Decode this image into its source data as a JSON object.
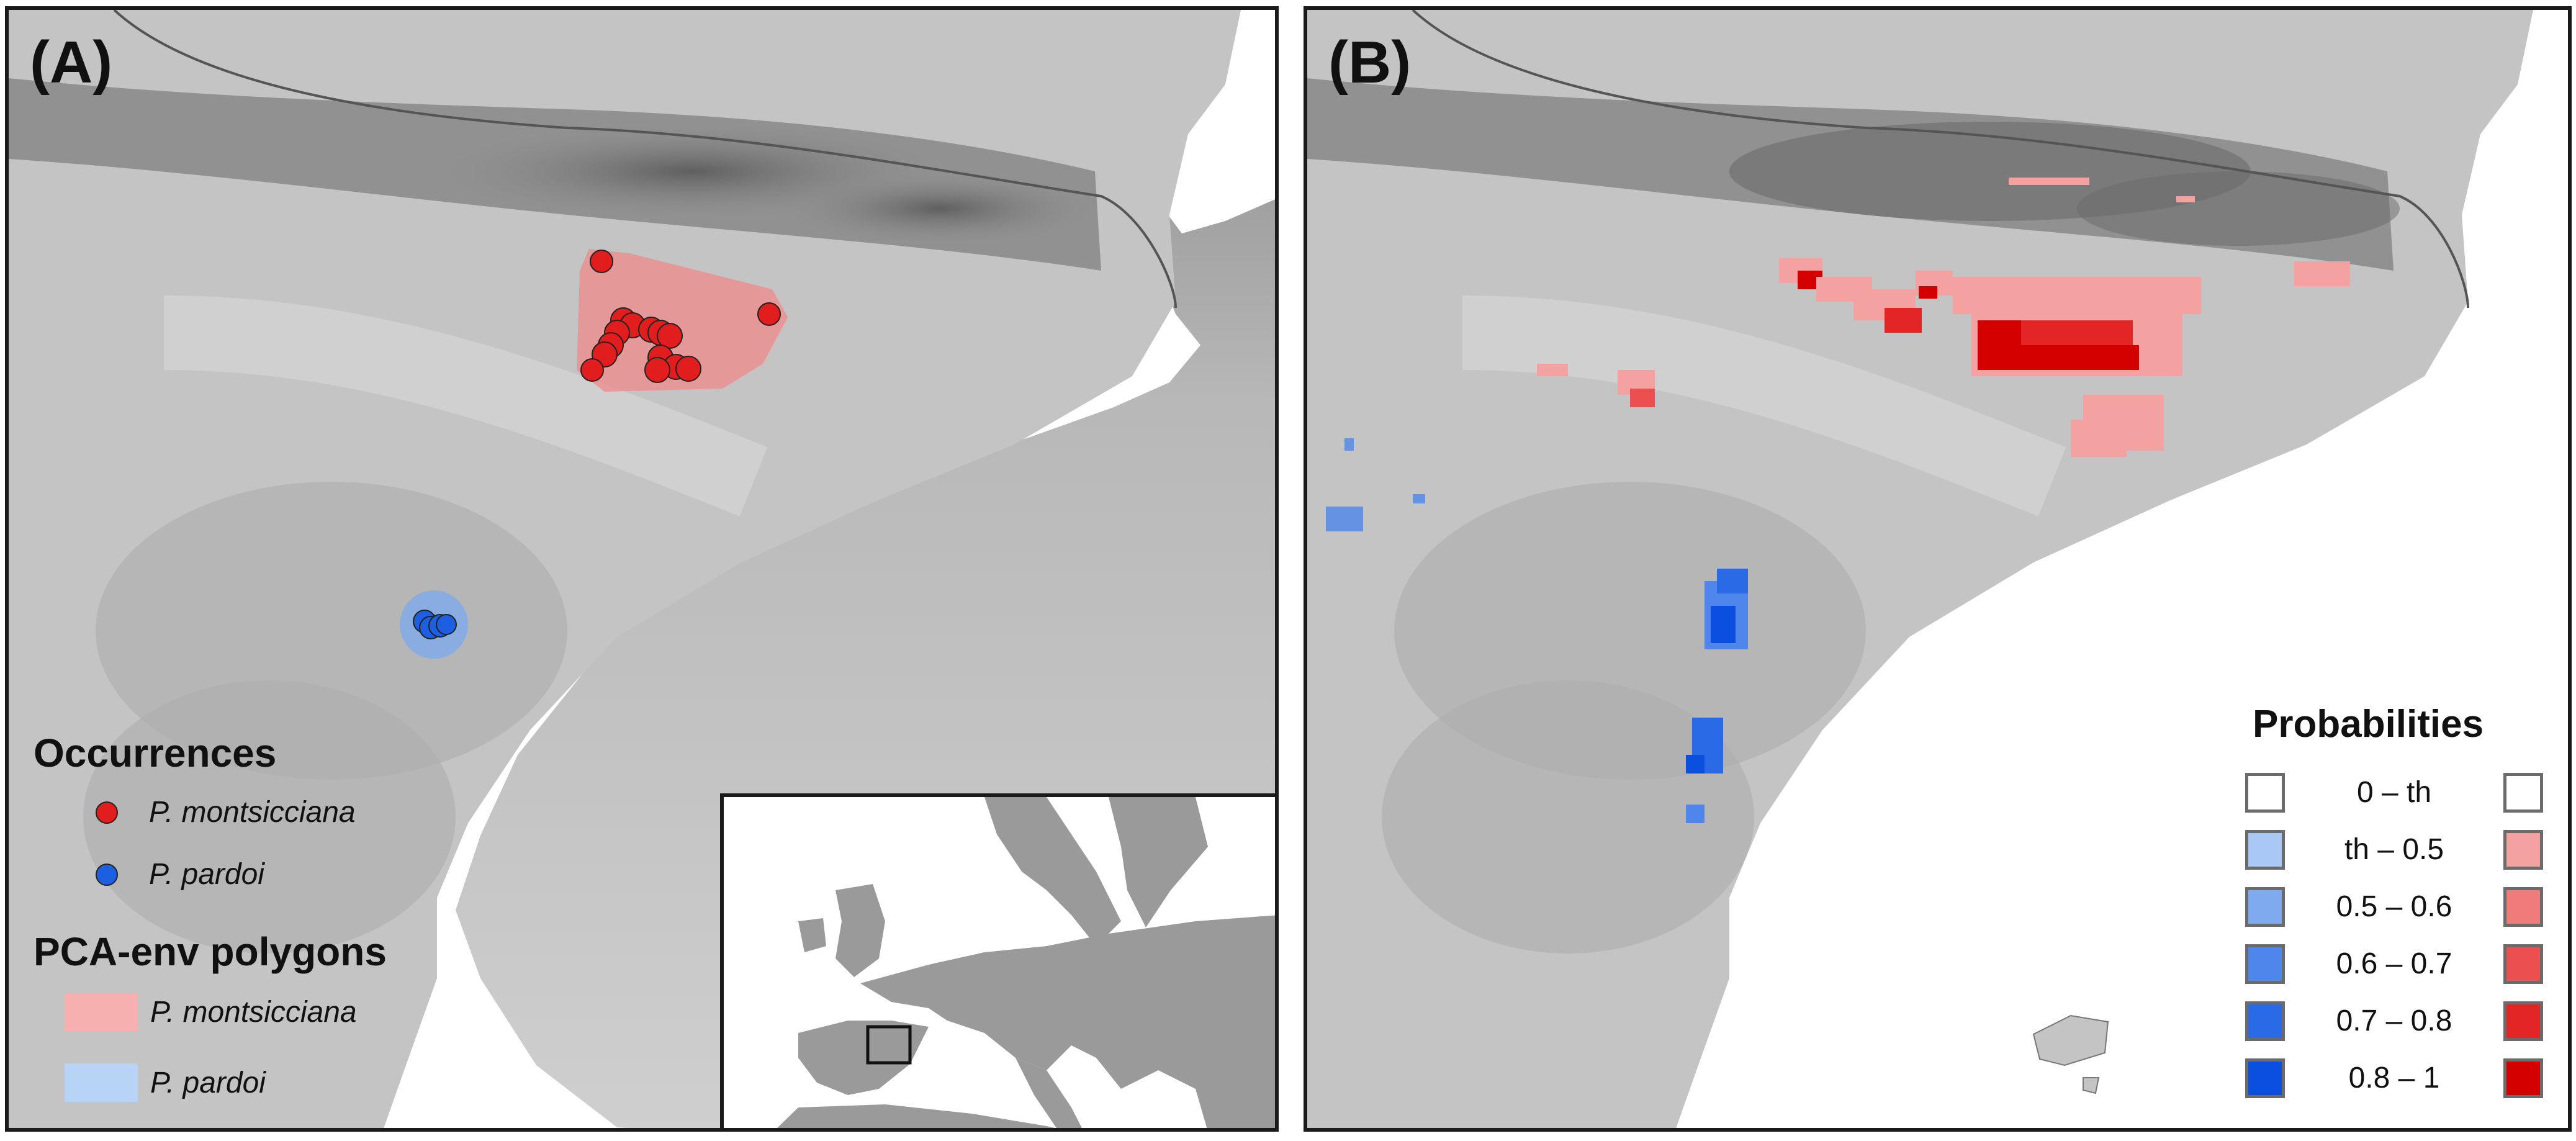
{
  "panelA": {
    "label": "(A)",
    "occurrences": {
      "title": "Occurrences",
      "items": [
        {
          "name": "P. montsicciana",
          "color": "#e11d1d"
        },
        {
          "name": "P. pardoi",
          "color": "#1d5fe1"
        }
      ]
    },
    "polygons": {
      "title": "PCA-env polygons",
      "items": [
        {
          "name": "P. montsicciana",
          "color": "#f7b0b0"
        },
        {
          "name": "P. pardoi",
          "color": "#b7d4f7"
        }
      ]
    }
  },
  "panelB": {
    "label": "(B)",
    "probabilities": {
      "title": "Probabilities",
      "rows": [
        {
          "range": "0 – th",
          "blue": "#ffffff",
          "red": "#ffffff"
        },
        {
          "range": "th – 0.5",
          "blue": "#a9c8f5",
          "red": "#f4a1a1"
        },
        {
          "range": "0.5 – 0.6",
          "blue": "#7faaf0",
          "red": "#ef7b7b"
        },
        {
          "range": "0.6 – 0.7",
          "blue": "#4f86ec",
          "red": "#eb4f4f"
        },
        {
          "range": "0.7 – 0.8",
          "blue": "#2a6ae6",
          "red": "#e42525"
        },
        {
          "range": "0.8 – 1",
          "blue": "#0a4fe0",
          "red": "#d40000"
        }
      ]
    }
  }
}
